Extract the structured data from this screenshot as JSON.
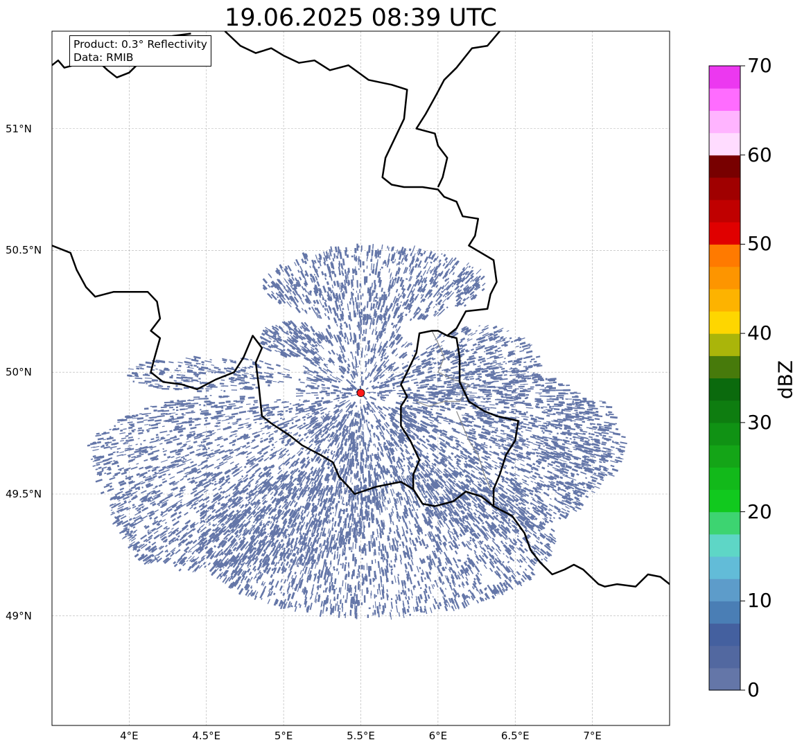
{
  "title": "19.06.2025 08:39 UTC",
  "info": {
    "product": "Product: 0.3° Reflectivity",
    "source": "Data: RMIB"
  },
  "map": {
    "lon_range": [
      3.5,
      7.5
    ],
    "lat_range": [
      48.55,
      51.4
    ],
    "radar_site": {
      "lon": 5.5,
      "lat": 49.915,
      "color": "#ff1a1a"
    },
    "x_ticks": [
      {
        "lon": 4.0,
        "label": "4°E"
      },
      {
        "lon": 4.5,
        "label": "4.5°E"
      },
      {
        "lon": 5.0,
        "label": "5°E"
      },
      {
        "lon": 5.5,
        "label": "5.5°E"
      },
      {
        "lon": 6.0,
        "label": "6°E"
      },
      {
        "lon": 6.5,
        "label": "6.5°E"
      },
      {
        "lon": 7.0,
        "label": "7°E"
      }
    ],
    "y_ticks": [
      {
        "lat": 51.0,
        "label": "51°N"
      },
      {
        "lat": 50.5,
        "label": "50.5°N"
      },
      {
        "lat": 50.0,
        "label": "50°N"
      },
      {
        "lat": 49.5,
        "label": "49.5°N"
      },
      {
        "lat": 49.0,
        "label": "49°N"
      }
    ],
    "grid": true,
    "echo_color": "#6476a8",
    "borders": [
      [
        [
          3.5,
          51.26
        ],
        [
          3.54,
          51.28
        ],
        [
          3.58,
          51.25
        ],
        [
          3.7,
          51.27
        ],
        [
          3.76,
          51.3
        ],
        [
          3.86,
          51.24
        ],
        [
          3.92,
          51.21
        ],
        [
          4.0,
          51.23
        ],
        [
          4.08,
          51.28
        ],
        [
          4.2,
          51.34
        ],
        [
          4.28,
          51.38
        ],
        [
          4.4,
          51.39
        ]
      ],
      [
        [
          4.62,
          51.4
        ],
        [
          4.72,
          51.34
        ],
        [
          4.82,
          51.31
        ],
        [
          4.92,
          51.33
        ],
        [
          5.0,
          51.3
        ],
        [
          5.1,
          51.27
        ],
        [
          5.2,
          51.28
        ],
        [
          5.3,
          51.24
        ],
        [
          5.42,
          51.26
        ],
        [
          5.55,
          51.2
        ],
        [
          5.7,
          51.18
        ],
        [
          5.8,
          51.16
        ],
        [
          5.78,
          51.04
        ],
        [
          5.72,
          50.96
        ],
        [
          5.66,
          50.88
        ],
        [
          5.64,
          50.8
        ],
        [
          5.7,
          50.77
        ],
        [
          5.78,
          50.76
        ],
        [
          5.9,
          50.76
        ],
        [
          6.0,
          50.75
        ],
        [
          6.04,
          50.72
        ],
        [
          6.12,
          50.7
        ],
        [
          6.16,
          50.64
        ],
        [
          6.26,
          50.63
        ],
        [
          6.24,
          50.56
        ],
        [
          6.2,
          50.52
        ],
        [
          6.28,
          50.49
        ],
        [
          6.36,
          50.46
        ],
        [
          6.38,
          50.37
        ],
        [
          6.34,
          50.32
        ],
        [
          6.32,
          50.26
        ],
        [
          6.18,
          50.25
        ],
        [
          6.12,
          50.18
        ],
        [
          6.06,
          50.15
        ]
      ],
      [
        [
          6.4,
          51.4
        ],
        [
          6.32,
          51.34
        ],
        [
          6.22,
          51.33
        ],
        [
          6.12,
          51.25
        ],
        [
          6.04,
          51.2
        ],
        [
          5.99,
          51.14
        ],
        [
          5.92,
          51.06
        ],
        [
          5.86,
          51.0
        ],
        [
          5.98,
          50.98
        ],
        [
          6.0,
          50.93
        ],
        [
          6.06,
          50.88
        ],
        [
          6.03,
          50.8
        ],
        [
          6.0,
          50.76
        ]
      ],
      [
        [
          3.5,
          50.52
        ],
        [
          3.62,
          50.49
        ],
        [
          3.66,
          50.42
        ],
        [
          3.72,
          50.35
        ],
        [
          3.78,
          50.31
        ],
        [
          3.9,
          50.33
        ],
        [
          4.0,
          50.33
        ],
        [
          4.12,
          50.33
        ],
        [
          4.18,
          50.29
        ],
        [
          4.2,
          50.22
        ],
        [
          4.14,
          50.17
        ],
        [
          4.2,
          50.14
        ],
        [
          4.16,
          50.05
        ],
        [
          4.14,
          50.0
        ],
        [
          4.22,
          49.96
        ],
        [
          4.34,
          49.95
        ],
        [
          4.44,
          49.93
        ],
        [
          4.56,
          49.97
        ],
        [
          4.68,
          50.0
        ],
        [
          4.74,
          50.06
        ],
        [
          4.8,
          50.15
        ],
        [
          4.86,
          50.1
        ],
        [
          4.82,
          50.04
        ],
        [
          4.84,
          49.94
        ],
        [
          4.86,
          49.82
        ],
        [
          4.92,
          49.79
        ],
        [
          5.04,
          49.74
        ],
        [
          5.12,
          49.7
        ],
        [
          5.24,
          49.66
        ],
        [
          5.32,
          49.63
        ],
        [
          5.36,
          49.57
        ],
        [
          5.42,
          49.53
        ],
        [
          5.46,
          49.5
        ],
        [
          5.6,
          49.53
        ],
        [
          5.76,
          49.55
        ],
        [
          5.84,
          49.52
        ],
        [
          5.9,
          49.46
        ],
        [
          5.98,
          49.45
        ],
        [
          6.1,
          49.47
        ],
        [
          6.18,
          49.51
        ],
        [
          6.28,
          49.49
        ],
        [
          6.36,
          49.45
        ],
        [
          6.48,
          49.41
        ],
        [
          6.56,
          49.34
        ],
        [
          6.6,
          49.27
        ],
        [
          6.66,
          49.22
        ],
        [
          6.74,
          49.17
        ],
        [
          6.82,
          49.19
        ],
        [
          6.88,
          49.21
        ],
        [
          6.94,
          49.19
        ],
        [
          7.04,
          49.13
        ],
        [
          7.08,
          49.12
        ],
        [
          7.16,
          49.13
        ],
        [
          7.28,
          49.12
        ],
        [
          7.36,
          49.17
        ],
        [
          7.44,
          49.16
        ],
        [
          7.5,
          49.13
        ]
      ],
      [
        [
          6.06,
          50.15
        ],
        [
          6.0,
          50.17
        ],
        [
          5.96,
          50.17
        ],
        [
          5.88,
          50.16
        ],
        [
          5.86,
          50.08
        ],
        [
          5.8,
          50.0
        ],
        [
          5.76,
          49.95
        ],
        [
          5.8,
          49.9
        ],
        [
          5.76,
          49.86
        ],
        [
          5.76,
          49.78
        ],
        [
          5.82,
          49.72
        ],
        [
          5.88,
          49.64
        ],
        [
          5.84,
          49.58
        ],
        [
          5.84,
          49.52
        ]
      ],
      [
        [
          6.06,
          50.15
        ],
        [
          6.12,
          50.14
        ],
        [
          6.14,
          50.06
        ],
        [
          6.14,
          49.96
        ],
        [
          6.2,
          49.88
        ],
        [
          6.3,
          49.84
        ],
        [
          6.38,
          49.82
        ],
        [
          6.52,
          49.8
        ],
        [
          6.5,
          49.72
        ],
        [
          6.44,
          49.66
        ],
        [
          6.4,
          49.58
        ],
        [
          6.36,
          49.52
        ],
        [
          6.36,
          49.45
        ]
      ]
    ],
    "thin_borders": [
      [
        [
          5.96,
          50.17
        ],
        [
          6.0,
          50.12
        ],
        [
          6.04,
          50.06
        ],
        [
          6.0,
          50.0
        ],
        [
          6.1,
          49.97
        ],
        [
          6.2,
          49.95
        ],
        [
          6.14,
          49.88
        ],
        [
          6.04,
          49.88
        ],
        [
          5.94,
          49.86
        ],
        [
          5.86,
          49.88
        ]
      ],
      [
        [
          6.12,
          49.84
        ],
        [
          6.2,
          49.72
        ],
        [
          6.26,
          49.66
        ],
        [
          6.3,
          49.58
        ],
        [
          6.34,
          49.52
        ]
      ]
    ]
  },
  "colorbar": {
    "label": "dBZ",
    "min": 0,
    "max": 70,
    "ticks": [
      "0",
      "10",
      "20",
      "30",
      "40",
      "50",
      "60",
      "70"
    ],
    "colors": [
      "#6476a8",
      "#5268a0",
      "#44609f",
      "#4a7eb5",
      "#5d9cca",
      "#62bcd8",
      "#5ed6c6",
      "#3dd471",
      "#11c91e",
      "#12b91a",
      "#14a517",
      "#109214",
      "#0e7d10",
      "#0b6a0d",
      "#477a0b",
      "#aab50a",
      "#fed600",
      "#fdb300",
      "#fd9500",
      "#ff7a00",
      "#e00000",
      "#c00000",
      "#a00000",
      "#780000",
      "#ffdcff",
      "#ffb4ff",
      "#ff6cff",
      "#ec38f0"
    ]
  }
}
